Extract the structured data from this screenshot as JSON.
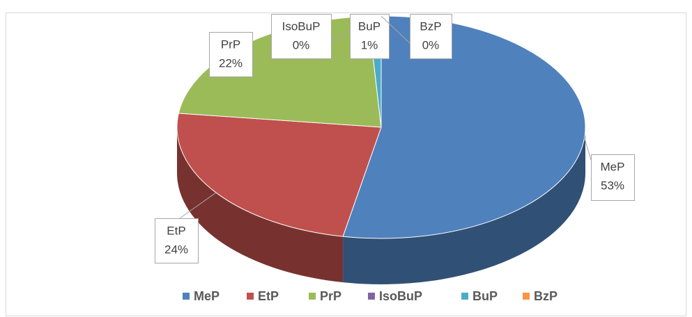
{
  "chart_data": {
    "type": "pie",
    "categories": [
      "MeP",
      "EtP",
      "PrP",
      "IsoBuP",
      "BuP",
      "BzP"
    ],
    "values": [
      53,
      24,
      22,
      0,
      1,
      0
    ],
    "value_labels": [
      "53%",
      "24%",
      "22%",
      "0%",
      "1%",
      "0%"
    ],
    "colors": [
      "#4f81bd",
      "#c0504d",
      "#9bbb59",
      "#8064a2",
      "#4bacc6",
      "#f79646"
    ],
    "legend": "bottom"
  }
}
